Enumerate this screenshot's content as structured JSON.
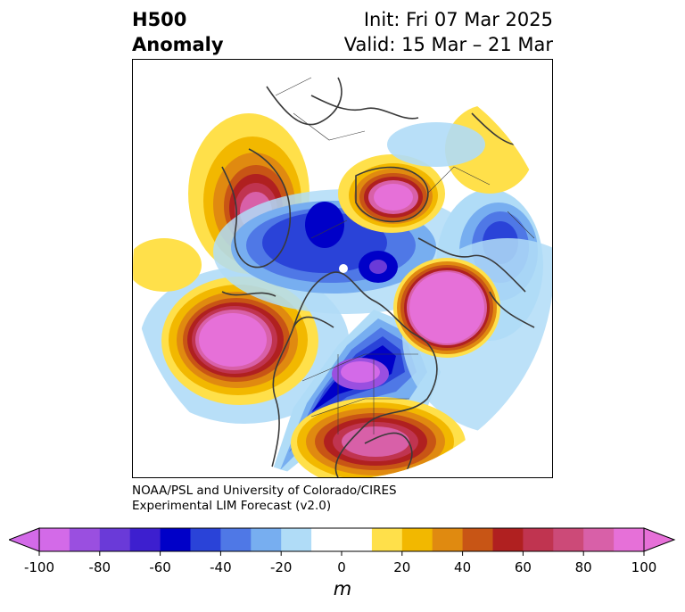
{
  "header": {
    "left_line1": "H500",
    "left_line2": "Anomaly",
    "right_line1": "Init: Fri 07 Mar 2025",
    "right_line2": "Valid: 15 Mar – 21 Mar"
  },
  "credit": {
    "line1": "NOAA/PSL and University of Colorado/CIRES",
    "line2": "Experimental LIM Forecast (v2.0)"
  },
  "colorbar": {
    "units": "m",
    "ticks": [
      "-100",
      "-80",
      "-60",
      "-40",
      "-20",
      "0",
      "20",
      "40",
      "60",
      "80",
      "100"
    ],
    "colors": [
      "#d36ae8",
      "#9a4fe0",
      "#6a3ad8",
      "#3d1fcf",
      "#0000c8",
      "#2a43d8",
      "#4f78e6",
      "#77aef0",
      "#b0dcf7",
      "#ffffff",
      "#ffffff",
      "#ffe04a",
      "#f2b800",
      "#e08a10",
      "#c85515",
      "#b02020",
      "#c03450",
      "#cc4a78",
      "#d860a8",
      "#e670d8"
    ],
    "extend_low_color": "#d36ae8",
    "extend_high_color": "#e670d8"
  },
  "map": {
    "projection": "north-polar-stereographic",
    "field": "500 hPa geopotential height anomaly"
  }
}
